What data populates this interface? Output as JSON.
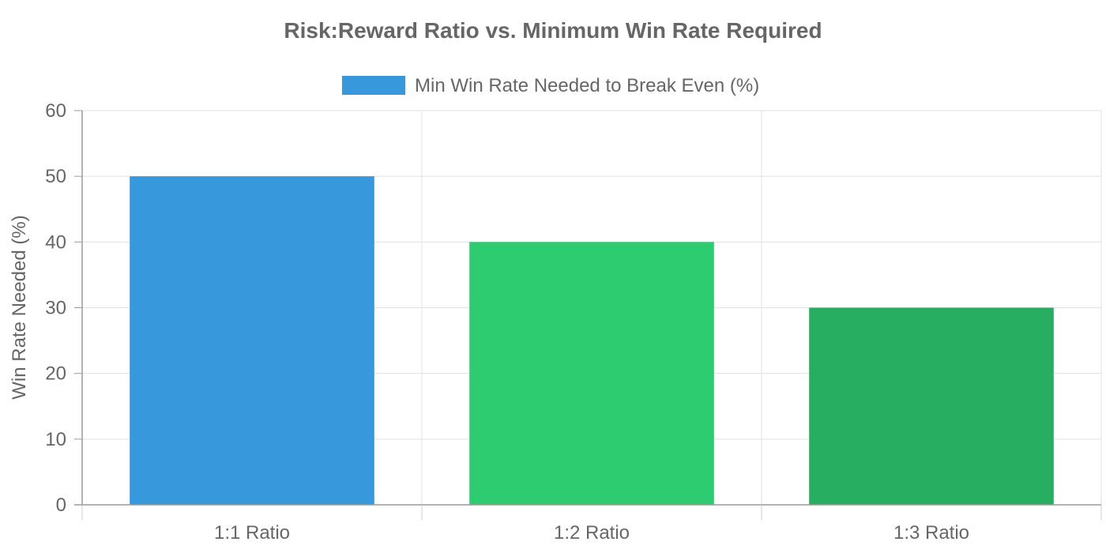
{
  "chart_data": {
    "type": "bar",
    "title": "Risk:Reward Ratio vs. Minimum Win Rate Required",
    "xlabel": "",
    "ylabel": "Win Rate Needed (%)",
    "categories": [
      "1:1 Ratio",
      "1:2 Ratio",
      "1:3 Ratio"
    ],
    "series": [
      {
        "name": "Min Win Rate Needed to Break Even (%)",
        "values": [
          50,
          40,
          30
        ],
        "colors": [
          "#3798db",
          "#2ecc71",
          "#27ae60"
        ]
      }
    ],
    "ylim": [
      0,
      60
    ],
    "yticks": [
      0,
      10,
      20,
      30,
      40,
      50,
      60
    ],
    "grid": true,
    "legend_position": "top-center",
    "legend_color": "#3798db"
  }
}
